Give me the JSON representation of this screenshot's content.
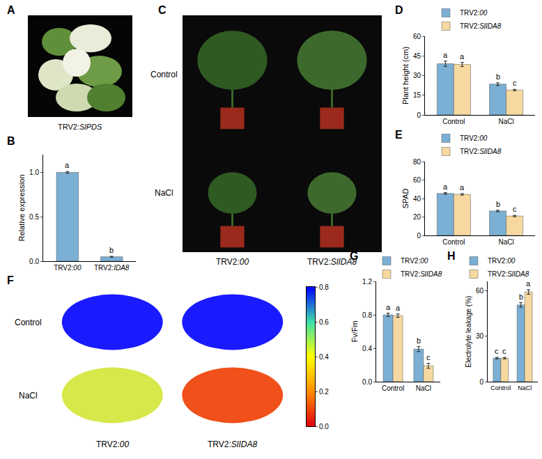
{
  "chart_data": [
    {
      "panel": "A",
      "type": "image",
      "caption": "TRV2:SlPDS"
    },
    {
      "panel": "B",
      "type": "bar",
      "y_label": "Relative expression",
      "categories": [
        "TRV2:00",
        "TRV2:IDA8"
      ],
      "values": [
        1.0,
        0.05
      ],
      "errors": [
        0.01,
        0.005
      ],
      "letters": [
        "a",
        "b"
      ],
      "color": "#7BAFD4",
      "ylim": [
        0,
        1.2
      ],
      "yticks": [
        {
          "value": 0,
          "label": "0.0"
        },
        0.5,
        {
          "value": 1,
          "label": "1.0"
        }
      ],
      "grid": false
    },
    {
      "panel": "C",
      "type": "image",
      "row_labels": [
        "Control",
        "NaCl"
      ],
      "column_labels": [
        "TRV2:00",
        "TRV2:SlIDA8"
      ]
    },
    {
      "panel": "D",
      "type": "bar",
      "y_label": "Plant height (cm)",
      "categories": [
        "Control",
        "NaCl"
      ],
      "series": [
        {
          "name": "TRV2:00",
          "color": "#7BAFD4",
          "values": [
            39,
            23.5
          ],
          "errors": [
            2,
            1
          ],
          "letters": [
            "a",
            "b"
          ]
        },
        {
          "name": "TRV2:SlIDA8",
          "color": "#F6D8A0",
          "values": [
            38.5,
            19
          ],
          "errors": [
            1.5,
            0.5
          ],
          "letters": [
            "a",
            "c"
          ]
        }
      ],
      "ylim": [
        0,
        60
      ],
      "yticks": [
        0,
        15,
        30,
        45,
        60
      ],
      "grid": false,
      "legend": "top"
    },
    {
      "panel": "E",
      "type": "bar",
      "y_label": "SPAD",
      "categories": [
        "Control",
        "NaCl"
      ],
      "series": [
        {
          "name": "TRV2:00",
          "color": "#7BAFD4",
          "values": [
            45.5,
            26.5
          ],
          "errors": [
            0.8,
            0.8
          ],
          "letters": [
            "a",
            "b"
          ]
        },
        {
          "name": "TRV2:SlIDA8",
          "color": "#F6D8A0",
          "values": [
            44.5,
            21
          ],
          "errors": [
            0.8,
            0.7
          ],
          "letters": [
            "a",
            "c"
          ]
        }
      ],
      "ylim": [
        0,
        80
      ],
      "yticks": [
        0,
        20,
        40,
        60,
        80
      ],
      "grid": false,
      "legend": "top"
    },
    {
      "panel": "F",
      "type": "image",
      "row_labels": [
        "Control",
        "NaCl"
      ],
      "column_labels": [
        "TRV2:00",
        "TRV2:SlIDA8"
      ],
      "colorbar": {
        "range": [
          0,
          0.8
        ],
        "ticks": [
          {
            "value": 0,
            "label": "0.0"
          },
          0.2,
          0.4,
          0.6,
          0.8
        ]
      }
    },
    {
      "panel": "G",
      "type": "bar",
      "y_label": "Fv/Fm",
      "categories": [
        "Control",
        "NaCl"
      ],
      "series": [
        {
          "name": "TRV2:00",
          "color": "#7BAFD4",
          "values": [
            0.8,
            0.39
          ],
          "errors": [
            0.02,
            0.03
          ],
          "letters": [
            "a",
            "b"
          ]
        },
        {
          "name": "TRV2:SlIDA8",
          "color": "#F6D8A0",
          "values": [
            0.79,
            0.19
          ],
          "errors": [
            0.02,
            0.03
          ],
          "letters": [
            "a",
            "c"
          ]
        }
      ],
      "ylim": [
        0,
        1.2
      ],
      "yticks": [
        {
          "value": 0,
          "label": "0.0"
        },
        0.4,
        0.8,
        1.2
      ],
      "grid": false,
      "legend": "top"
    },
    {
      "panel": "H",
      "type": "bar",
      "y_label": "Electrolyte leakage (%)",
      "categories": [
        "Control",
        "NaCl"
      ],
      "series": [
        {
          "name": "TRV2:00",
          "color": "#7BAFD4",
          "values": [
            15.5,
            50.5
          ],
          "errors": [
            0.5,
            1.5
          ],
          "letters": [
            "c",
            "b"
          ]
        },
        {
          "name": "TRV2:SlIDA8",
          "color": "#F6D8A0",
          "values": [
            15.5,
            59
          ],
          "errors": [
            0.5,
            1.5
          ],
          "letters": [
            "c",
            "a"
          ]
        }
      ],
      "ylim": [
        0,
        66
      ],
      "yticks": [
        0,
        30,
        60
      ],
      "grid": false,
      "legend": "top"
    }
  ]
}
